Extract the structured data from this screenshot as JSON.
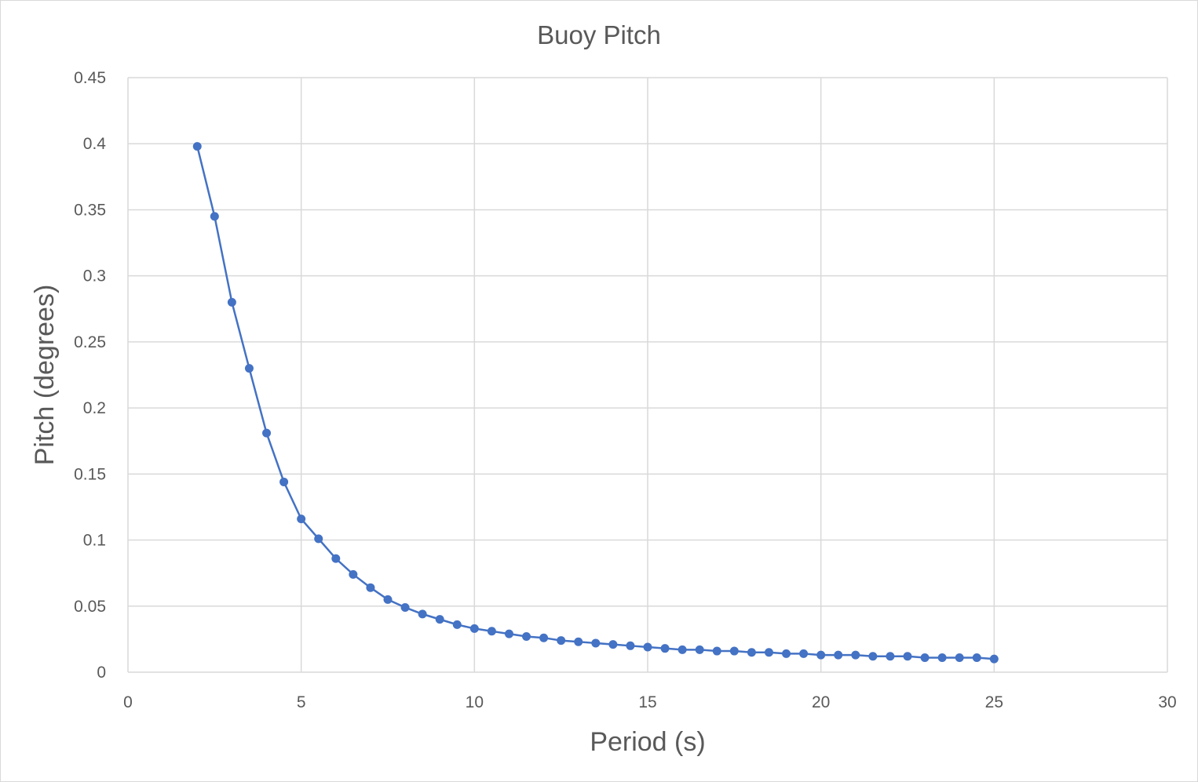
{
  "chart_data": {
    "type": "scatter",
    "title": "Buoy Pitch",
    "xlabel": "Period (s)",
    "ylabel": "Pitch (degrees)",
    "xlim": [
      0,
      30
    ],
    "ylim": [
      0,
      0.45
    ],
    "x_ticks": [
      "0",
      "5",
      "10",
      "15",
      "20",
      "25",
      "30"
    ],
    "y_ticks": [
      "0",
      "0.05",
      "0.1",
      "0.15",
      "0.2",
      "0.25",
      "0.3",
      "0.35",
      "0.4",
      "0.45"
    ],
    "grid": true,
    "legend": "none",
    "line_color": "#4472c4",
    "series": [
      {
        "x": [
          2,
          2.5,
          3,
          3.5,
          4,
          4.5,
          5,
          5.5,
          6,
          6.5,
          7,
          7.5,
          8,
          8.5,
          9,
          9.5,
          10,
          10.5,
          11,
          11.5,
          12,
          12.5,
          13,
          13.5,
          14,
          14.5,
          15,
          15.5,
          16,
          16.5,
          17,
          17.5,
          18,
          18.5,
          19,
          19.5,
          20,
          20.5,
          21,
          21.5,
          22,
          22.5,
          23,
          23.5,
          24,
          24.5,
          25
        ],
        "values": [
          0.398,
          0.345,
          0.28,
          0.23,
          0.181,
          0.144,
          0.116,
          0.101,
          0.086,
          0.074,
          0.064,
          0.055,
          0.049,
          0.044,
          0.04,
          0.036,
          0.033,
          0.031,
          0.029,
          0.027,
          0.026,
          0.024,
          0.023,
          0.022,
          0.021,
          0.02,
          0.019,
          0.018,
          0.017,
          0.017,
          0.016,
          0.016,
          0.015,
          0.015,
          0.014,
          0.014,
          0.013,
          0.013,
          0.013,
          0.012,
          0.012,
          0.012,
          0.011,
          0.011,
          0.011,
          0.011,
          0.01
        ]
      }
    ]
  }
}
